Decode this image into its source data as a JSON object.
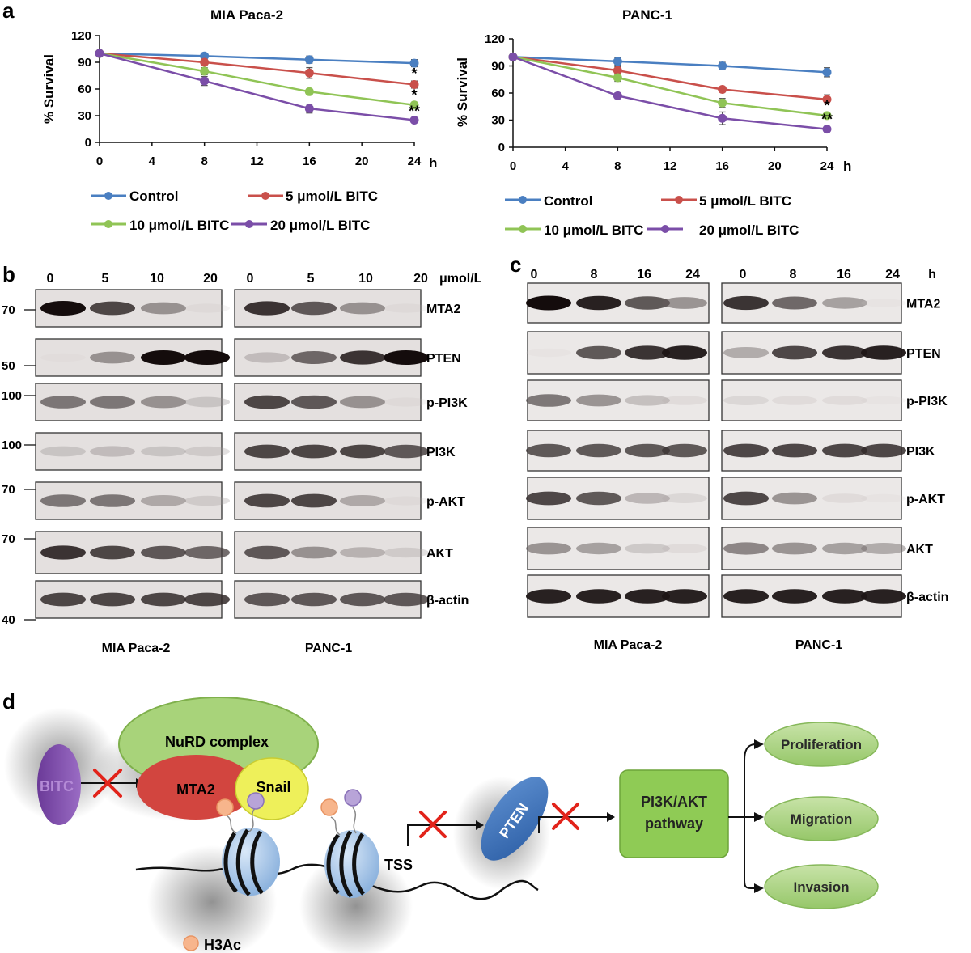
{
  "panels": {
    "a": "a",
    "b": "b",
    "c": "c",
    "d": "d"
  },
  "chart_data": [
    {
      "type": "line",
      "title": "MIA Paca-2",
      "ylabel": "% Survival",
      "xunit": "h",
      "x": [
        0,
        8,
        16,
        24
      ],
      "xticks": [
        "0",
        "4",
        "8",
        "12",
        "16",
        "20",
        "24"
      ],
      "yticks": [
        "0",
        "30",
        "60",
        "90",
        "120"
      ],
      "xlim": [
        0,
        24
      ],
      "ylim": [
        0,
        120
      ],
      "series": [
        {
          "name": "Control",
          "color": "#4a7fc1",
          "values": [
            100,
            97,
            93,
            89
          ],
          "err": [
            2,
            2,
            4,
            4
          ],
          "stars": ""
        },
        {
          "name": "5 μmol/L BITC",
          "color": "#c9504b",
          "values": [
            100,
            90,
            78,
            65
          ],
          "err": [
            2,
            3,
            6,
            4
          ],
          "stars": "*"
        },
        {
          "name": "10 μmol/L BITC",
          "color": "#90c456",
          "values": [
            100,
            80,
            57,
            42
          ],
          "err": [
            2,
            4,
            3,
            3
          ],
          "stars": "*"
        },
        {
          "name": "20 μmol/L BITC",
          "color": "#7b4ea8",
          "values": [
            100,
            69,
            38,
            25
          ],
          "err": [
            2,
            5,
            5,
            2
          ],
          "stars": "**"
        }
      ]
    },
    {
      "type": "line",
      "title": "PANC-1",
      "ylabel": "% Survival",
      "xunit": "h",
      "x": [
        0,
        8,
        16,
        24
      ],
      "xticks": [
        "0",
        "4",
        "8",
        "12",
        "16",
        "20",
        "24"
      ],
      "yticks": [
        "0",
        "30",
        "60",
        "90",
        "120"
      ],
      "xlim": [
        0,
        24
      ],
      "ylim": [
        0,
        120
      ],
      "series": [
        {
          "name": "Control",
          "color": "#4a7fc1",
          "values": [
            100,
            95,
            90,
            83
          ],
          "err": [
            2,
            4,
            4,
            5
          ],
          "stars": ""
        },
        {
          "name": "5 μmol/L BITC",
          "color": "#c9504b",
          "values": [
            100,
            85,
            64,
            53
          ],
          "err": [
            2,
            4,
            3,
            5
          ],
          "stars": ""
        },
        {
          "name": "10 μmol/L BITC",
          "color": "#90c456",
          "values": [
            100,
            77,
            49,
            35
          ],
          "err": [
            2,
            4,
            5,
            3
          ],
          "stars": "*"
        },
        {
          "name": "20 μmol/L BITC",
          "color": "#7b4ea8",
          "values": [
            100,
            57,
            32,
            20
          ],
          "err": [
            2,
            3,
            7,
            3
          ],
          "stars": "**"
        }
      ]
    }
  ],
  "blot_b": {
    "doses": [
      "0",
      "5",
      "10",
      "20"
    ],
    "dose_unit": "μmol/L",
    "mw": [
      "70",
      "50",
      "100",
      "100",
      "70",
      "70",
      "40"
    ],
    "cells": [
      "MIA Paca-2",
      "PANC-1"
    ],
    "proteins": [
      "MTA2",
      "PTEN",
      "p-PI3K",
      "PI3K",
      "p-AKT",
      "AKT",
      "β-actin"
    ],
    "intensity_left": [
      [
        1.0,
        0.85,
        0.6,
        0.15
      ],
      [
        0.05,
        0.6,
        1.0,
        1.0
      ],
      [
        0.7,
        0.7,
        0.6,
        0.35
      ],
      [
        0.35,
        0.4,
        0.35,
        0.3
      ],
      [
        0.7,
        0.7,
        0.5,
        0.3
      ],
      [
        0.9,
        0.85,
        0.8,
        0.75
      ],
      [
        0.85,
        0.85,
        0.85,
        0.85
      ]
    ],
    "intensity_right": [
      [
        0.9,
        0.8,
        0.6,
        0.15
      ],
      [
        0.4,
        0.75,
        0.9,
        1.0
      ],
      [
        0.85,
        0.8,
        0.6,
        0.15
      ],
      [
        0.85,
        0.85,
        0.85,
        0.8
      ],
      [
        0.85,
        0.85,
        0.5,
        0.15
      ],
      [
        0.8,
        0.6,
        0.45,
        0.3
      ],
      [
        0.8,
        0.8,
        0.8,
        0.8
      ]
    ]
  },
  "blot_c": {
    "times": [
      "0",
      "8",
      "16",
      "24"
    ],
    "time_unit": "h",
    "cells": [
      "MIA Paca-2",
      "PANC-1"
    ],
    "proteins": [
      "MTA2",
      "PTEN",
      "p-PI3K",
      "PI3K",
      "p-AKT",
      "AKT",
      "β-actin"
    ],
    "intensity_left": [
      [
        1.0,
        0.95,
        0.8,
        0.6
      ],
      [
        0.05,
        0.8,
        0.9,
        0.95
      ],
      [
        0.7,
        0.6,
        0.4,
        0.2
      ],
      [
        0.8,
        0.8,
        0.8,
        0.8
      ],
      [
        0.85,
        0.8,
        0.45,
        0.25
      ],
      [
        0.6,
        0.55,
        0.35,
        0.2
      ],
      [
        0.95,
        0.95,
        0.95,
        0.95
      ]
    ],
    "intensity_right": [
      [
        0.9,
        0.75,
        0.55,
        0.05
      ],
      [
        0.5,
        0.85,
        0.9,
        0.95
      ],
      [
        0.25,
        0.2,
        0.2,
        0.05
      ],
      [
        0.85,
        0.85,
        0.85,
        0.85
      ],
      [
        0.85,
        0.6,
        0.2,
        0.05
      ],
      [
        0.65,
        0.6,
        0.55,
        0.5
      ],
      [
        0.95,
        0.95,
        0.95,
        0.95
      ]
    ]
  },
  "diagram": {
    "nurd": "NuRD complex",
    "mta2": "MTA2",
    "snail": "Snail",
    "bitc": "BITC",
    "tss": "TSS",
    "pten": "PTEN",
    "pathway_line1": "PI3K/AKT",
    "pathway_line2": "pathway",
    "outcomes": [
      "Proliferation",
      "Migration",
      "Invasion"
    ],
    "h3ac": "H3Ac"
  }
}
